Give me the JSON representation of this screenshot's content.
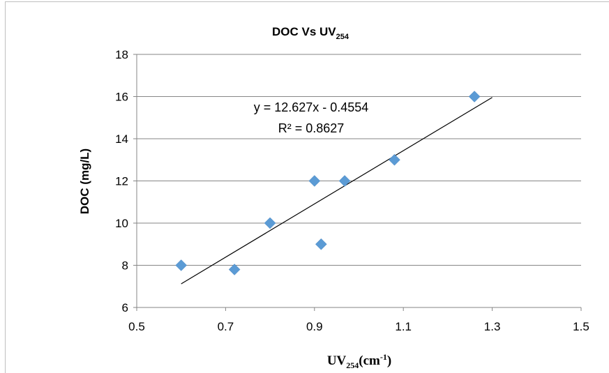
{
  "chart_data": {
    "type": "scatter",
    "title": {
      "main": "DOC Vs UV",
      "subscript": "254"
    },
    "xlabel": {
      "main": "UV",
      "subscript": "254",
      "unit_open": "(cm",
      "unit_sup": "-1",
      "unit_close": ")"
    },
    "ylabel": "DOC (mg/L)",
    "xlim": [
      0.5,
      1.5
    ],
    "ylim": [
      6,
      18
    ],
    "x_ticks": [
      0.5,
      0.7,
      0.9,
      1.1,
      1.3,
      1.5
    ],
    "x_tick_labels": [
      "0.5",
      "0.7",
      "0.9",
      "1.1",
      "1.3",
      "1.5"
    ],
    "y_ticks": [
      6,
      8,
      10,
      12,
      14,
      16,
      18
    ],
    "y_tick_labels": [
      "6",
      "8",
      "10",
      "12",
      "14",
      "16",
      "18"
    ],
    "grid": "horizontal",
    "marker": "diamond",
    "marker_color": "#5b9bd5",
    "points": [
      {
        "x": 0.6,
        "y": 8.0
      },
      {
        "x": 0.72,
        "y": 7.8
      },
      {
        "x": 0.8,
        "y": 10.0
      },
      {
        "x": 0.9,
        "y": 12.0
      },
      {
        "x": 0.915,
        "y": 9.0
      },
      {
        "x": 0.968,
        "y": 12.0
      },
      {
        "x": 1.08,
        "y": 13.0
      },
      {
        "x": 1.26,
        "y": 16.0
      }
    ],
    "trendline": {
      "type": "linear",
      "slope": 12.627,
      "intercept": -0.4554,
      "x_range": [
        0.6,
        1.3
      ],
      "color": "#000000",
      "equation_text": "y = 12.627x - 0.4554",
      "r2_text": "R² = 0.8627"
    }
  }
}
